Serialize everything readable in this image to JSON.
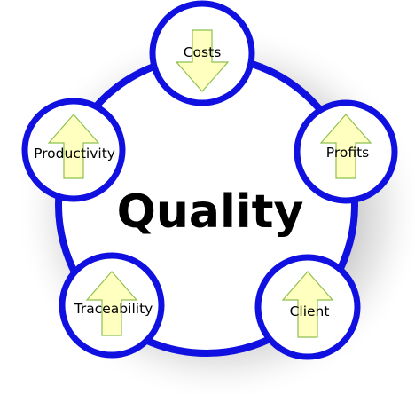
{
  "diagram": {
    "center_label": "Quality",
    "colors": {
      "ring_stroke": "#1010e0",
      "circle_fill": "#ffffff",
      "arrow_fill": "#ffffc0",
      "arrow_stroke": "#8ec050",
      "shadow": "#9a9a9a"
    },
    "nodes": [
      {
        "label": "Costs",
        "arrow": "down",
        "icon": "down-arrow-icon"
      },
      {
        "label": "Profits",
        "arrow": "up",
        "icon": "up-arrow-icon"
      },
      {
        "label": "Client",
        "arrow": "up",
        "icon": "up-arrow-icon"
      },
      {
        "label": "Traceability",
        "arrow": "up",
        "icon": "up-arrow-icon"
      },
      {
        "label": "Productivity",
        "arrow": "up",
        "icon": "up-arrow-icon"
      }
    ]
  }
}
